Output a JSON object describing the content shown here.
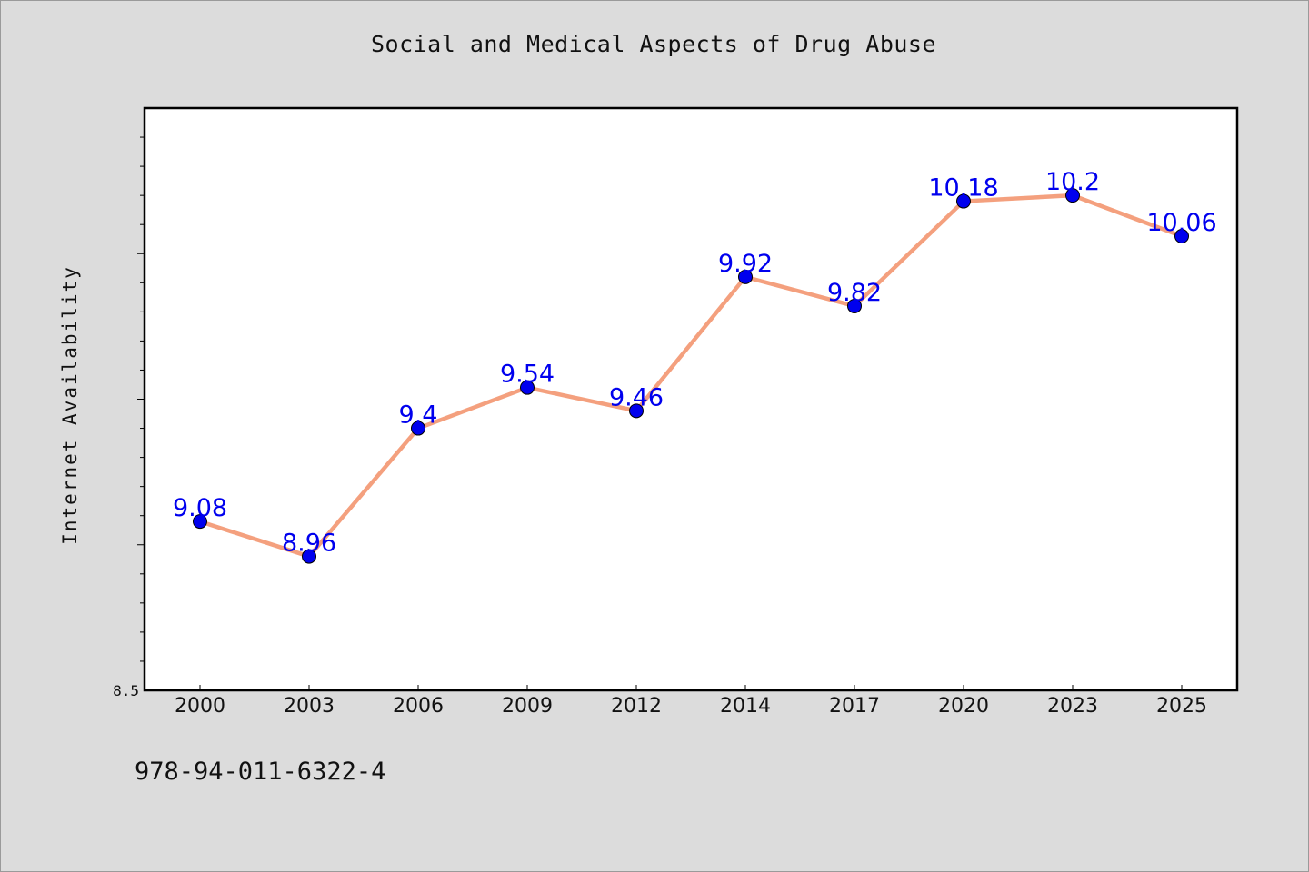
{
  "title": "Social and Medical Aspects of Drug Abuse",
  "footer_code": "978-94-011-6322-4",
  "chart_data": {
    "type": "line",
    "title": "Social and Medical Aspects of Drug Abuse",
    "xlabel": "",
    "ylabel": "Internet Availability",
    "categories": [
      "2000",
      "2003",
      "2006",
      "2009",
      "2012",
      "2014",
      "2017",
      "2020",
      "2023",
      "2025"
    ],
    "series": [
      {
        "values": [
          9.08,
          8.96,
          9.4,
          9.54,
          9.46,
          9.92,
          9.82,
          10.18,
          10.2,
          10.06
        ],
        "line_color": "#f4a07e",
        "marker_color": "#0000ee",
        "label_color": "#0000ee"
      }
    ],
    "ylim": [
      8.5,
      10.5
    ],
    "y_tick_labels": [
      "8.5"
    ],
    "y_minor_tick_step": 0.1,
    "grid": false,
    "legend": "none"
  },
  "colors": {
    "background": "#dcdcdc",
    "plot_background": "#ffffff",
    "axis": "#000000"
  }
}
